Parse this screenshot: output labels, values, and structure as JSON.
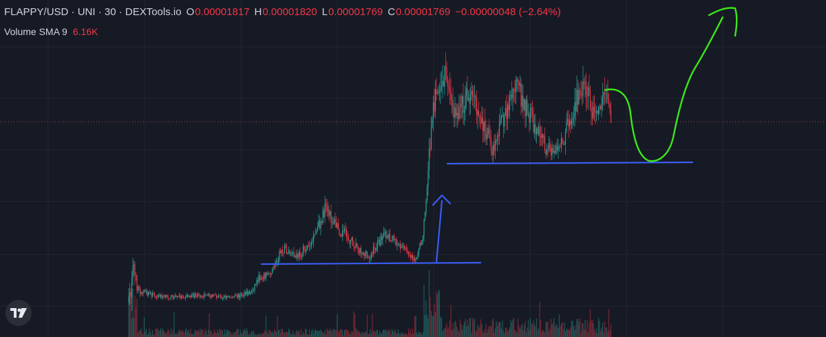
{
  "legend": {
    "symbol": "FLAPPY/USD · UNI · 30 · DEXTools.io",
    "open_label": "O",
    "open": "0.00001817",
    "high_label": "H",
    "high": "0.00001820",
    "low_label": "L",
    "low": "0.00001769",
    "close_label": "C",
    "close": "0.00001769",
    "change": "−0.00000048 (−2.64%)"
  },
  "volume": {
    "label": "Volume SMA 9",
    "value": "6.16K"
  },
  "colors": {
    "background": "#161a25",
    "grid": "#232732",
    "up": "#26a69a",
    "down": "#f23645",
    "annotation_blue": "#3a5cf0",
    "annotation_green": "#3ee61a",
    "last_price_line": "#c2484a"
  },
  "icons": {
    "logo": "tradingview-logo-icon"
  },
  "chart_data": {
    "type": "candlestick",
    "title": "FLAPPY/USD · UNI · 30 · DEXTools.io",
    "y_axis_visible": false,
    "grid": true,
    "interval": "30",
    "last": {
      "open": 1.817e-05,
      "high": 1.82e-05,
      "low": 1.769e-05,
      "close": 1.769e-05
    },
    "phases": [
      {
        "name": "launch spike",
        "approx_high": 1.05e-05,
        "approx_low": 3.5e-06
      },
      {
        "name": "early flat range",
        "approx_level": 6.2e-06
      },
      {
        "name": "accumulation range",
        "approx_support": 9.2e-06,
        "approx_high": 1.35e-05
      },
      {
        "name": "breakout",
        "approx_from": 9.3e-06,
        "approx_to": 2.25e-05
      },
      {
        "name": "upper range",
        "approx_support": 1.58e-05,
        "approx_high": 2.25e-05
      }
    ],
    "annotations": [
      {
        "type": "horizontal line",
        "color": "blue",
        "level": "support of lower range"
      },
      {
        "type": "arrow up",
        "color": "blue",
        "meaning": "breakout"
      },
      {
        "type": "horizontal line",
        "color": "blue",
        "level": "support of upper range"
      },
      {
        "type": "freehand arrow",
        "color": "green",
        "meaning": "dip to support then rally"
      }
    ]
  }
}
